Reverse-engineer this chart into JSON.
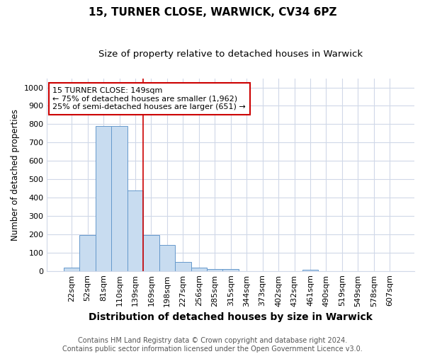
{
  "title1": "15, TURNER CLOSE, WARWICK, CV34 6PZ",
  "title2": "Size of property relative to detached houses in Warwick",
  "xlabel": "Distribution of detached houses by size in Warwick",
  "ylabel": "Number of detached properties",
  "categories": [
    "22sqm",
    "52sqm",
    "81sqm",
    "110sqm",
    "139sqm",
    "169sqm",
    "198sqm",
    "227sqm",
    "256sqm",
    "285sqm",
    "315sqm",
    "344sqm",
    "373sqm",
    "402sqm",
    "432sqm",
    "461sqm",
    "490sqm",
    "519sqm",
    "549sqm",
    "578sqm",
    "607sqm"
  ],
  "values": [
    18,
    195,
    790,
    790,
    440,
    195,
    140,
    47,
    17,
    12,
    12,
    0,
    0,
    0,
    0,
    8,
    0,
    0,
    0,
    0,
    0
  ],
  "bar_color": "#c8dcf0",
  "bar_edge_color": "#6699cc",
  "red_line_x": 4.5,
  "annotation_text": "15 TURNER CLOSE: 149sqm\n← 75% of detached houses are smaller (1,962)\n25% of semi-detached houses are larger (651) →",
  "annotation_box_color": "#ffffff",
  "annotation_box_edge_color": "#cc0000",
  "footnote": "Contains HM Land Registry data © Crown copyright and database right 2024.\nContains public sector information licensed under the Open Government Licence v3.0.",
  "ylim": [
    0,
    1050
  ],
  "yticks": [
    0,
    100,
    200,
    300,
    400,
    500,
    600,
    700,
    800,
    900,
    1000
  ],
  "background_color": "#ffffff",
  "plot_bg_color": "#ffffff",
  "grid_color": "#d0d8e8",
  "title1_fontsize": 11,
  "title2_fontsize": 9.5,
  "xlabel_fontsize": 10,
  "ylabel_fontsize": 8.5,
  "tick_fontsize": 8,
  "annot_fontsize": 8,
  "footnote_fontsize": 7
}
